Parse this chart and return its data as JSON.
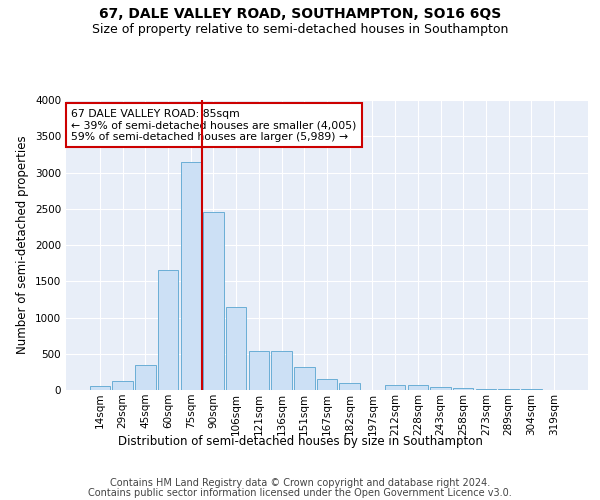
{
  "title": "67, DALE VALLEY ROAD, SOUTHAMPTON, SO16 6QS",
  "subtitle": "Size of property relative to semi-detached houses in Southampton",
  "xlabel": "Distribution of semi-detached houses by size in Southampton",
  "ylabel": "Number of semi-detached properties",
  "categories": [
    "14sqm",
    "29sqm",
    "45sqm",
    "60sqm",
    "75sqm",
    "90sqm",
    "106sqm",
    "121sqm",
    "136sqm",
    "151sqm",
    "167sqm",
    "182sqm",
    "197sqm",
    "212sqm",
    "228sqm",
    "243sqm",
    "258sqm",
    "273sqm",
    "289sqm",
    "304sqm",
    "319sqm"
  ],
  "values": [
    50,
    130,
    350,
    1650,
    3150,
    2450,
    1150,
    540,
    540,
    320,
    155,
    100,
    0,
    75,
    65,
    45,
    25,
    10,
    8,
    8,
    4
  ],
  "bar_color": "#cce0f5",
  "bar_edge_color": "#6aaed6",
  "marker_bin_index": 5,
  "marker_color": "#cc0000",
  "annotation_text": "67 DALE VALLEY ROAD: 85sqm\n← 39% of semi-detached houses are smaller (4,005)\n59% of semi-detached houses are larger (5,989) →",
  "annotation_box_color": "#ffffff",
  "annotation_box_edge": "#cc0000",
  "ylim": [
    0,
    4000
  ],
  "yticks": [
    0,
    500,
    1000,
    1500,
    2000,
    2500,
    3000,
    3500,
    4000
  ],
  "footer1": "Contains HM Land Registry data © Crown copyright and database right 2024.",
  "footer2": "Contains public sector information licensed under the Open Government Licence v3.0.",
  "title_fontsize": 10,
  "subtitle_fontsize": 9,
  "axis_label_fontsize": 8.5,
  "tick_fontsize": 7.5,
  "footer_fontsize": 7
}
